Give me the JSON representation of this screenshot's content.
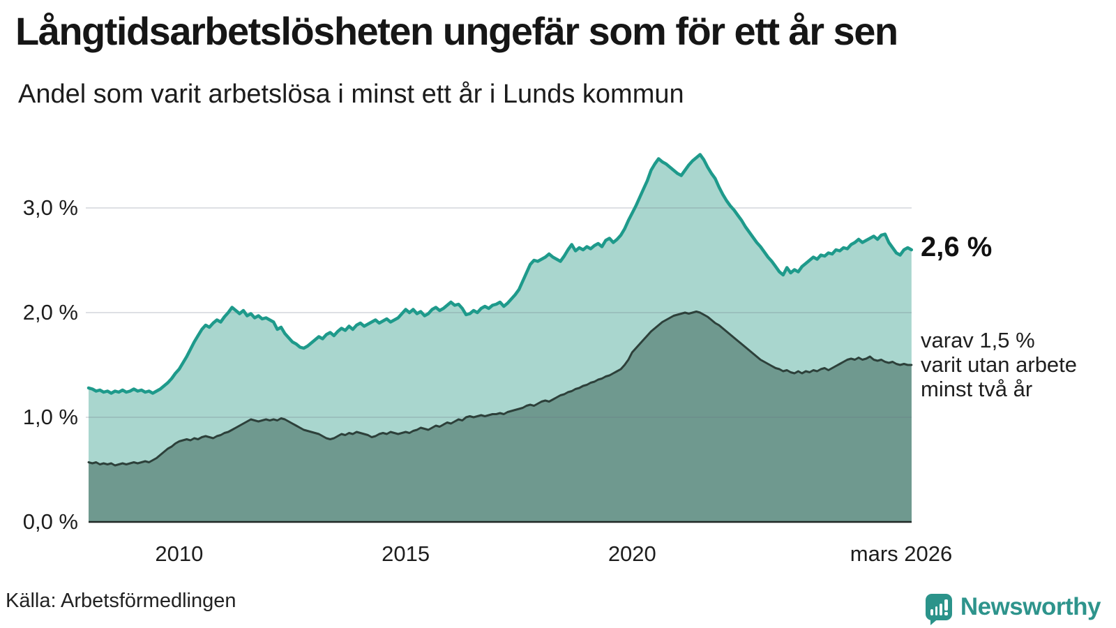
{
  "header": {
    "title": "Långtidsarbetslösheten ungefär som för ett år sen",
    "subtitle": "Andel som varit arbetslösa i minst ett år i Lunds kommun"
  },
  "annotations": {
    "end_value_total": "2,6 %",
    "end_note_lines": [
      "varav 1,5 %",
      "varit utan arbete",
      "minst två år"
    ]
  },
  "footer": {
    "source": "Källa: Arbetsförmedlingen",
    "brand": "Newsworthy"
  },
  "colors": {
    "series1_line": "#1e9a8b",
    "series1_fill": "#a9d6ce",
    "series2_line": "#2d403a",
    "series2_fill": "#6f998f",
    "axis_line": "#202825",
    "gridline": "rgba(105,115,130,0.22)",
    "brand_teal": "#2b938a"
  },
  "chart_data": {
    "type": "area",
    "title": "Långtidsarbetslösheten ungefär som för ett år sen",
    "subtitle": "Andel som varit arbetslösa i minst ett år i Lunds kommun",
    "source": "Källa: Arbetsförmedlingen",
    "unit": "%",
    "grid": true,
    "xlim": [
      2008.0,
      2026.17
    ],
    "ylim": [
      0,
      3.6
    ],
    "start_year": 2008,
    "points_per_year": 12,
    "x_ticks": [
      {
        "year": 2010,
        "label": "2010"
      },
      {
        "year": 2015,
        "label": "2015"
      },
      {
        "year": 2020,
        "label": "2020"
      },
      {
        "year": 2026.17,
        "label": "mars 2026"
      }
    ],
    "y_ticks": [
      {
        "value": 0,
        "label": "0,0 %"
      },
      {
        "value": 1,
        "label": "1,0 %"
      },
      {
        "value": 2,
        "label": "2,0 %"
      },
      {
        "value": 3,
        "label": "3,0 %"
      }
    ],
    "series": [
      {
        "id": "minst-ett-ar",
        "name": "Andel arbetslösa minst ett år",
        "end_label": "2,6 %",
        "color": "#1e9a8b",
        "fill": "#a9d6ce",
        "values": [
          1.28,
          1.27,
          1.25,
          1.26,
          1.24,
          1.25,
          1.23,
          1.25,
          1.24,
          1.26,
          1.24,
          1.25,
          1.27,
          1.25,
          1.26,
          1.24,
          1.25,
          1.23,
          1.25,
          1.27,
          1.3,
          1.33,
          1.37,
          1.42,
          1.46,
          1.52,
          1.58,
          1.65,
          1.72,
          1.78,
          1.84,
          1.88,
          1.86,
          1.9,
          1.93,
          1.91,
          1.96,
          2.0,
          2.05,
          2.02,
          1.99,
          2.02,
          1.97,
          1.99,
          1.95,
          1.97,
          1.94,
          1.95,
          1.93,
          1.91,
          1.84,
          1.86,
          1.8,
          1.76,
          1.72,
          1.7,
          1.67,
          1.66,
          1.68,
          1.71,
          1.74,
          1.77,
          1.75,
          1.79,
          1.81,
          1.78,
          1.82,
          1.85,
          1.83,
          1.87,
          1.84,
          1.88,
          1.9,
          1.87,
          1.89,
          1.91,
          1.93,
          1.9,
          1.92,
          1.94,
          1.91,
          1.93,
          1.95,
          1.99,
          2.03,
          2.0,
          2.03,
          1.99,
          2.01,
          1.97,
          1.99,
          2.03,
          2.05,
          2.02,
          2.04,
          2.07,
          2.1,
          2.07,
          2.08,
          2.04,
          1.98,
          1.99,
          2.02,
          2.0,
          2.04,
          2.06,
          2.04,
          2.07,
          2.08,
          2.1,
          2.06,
          2.09,
          2.13,
          2.17,
          2.22,
          2.3,
          2.38,
          2.46,
          2.5,
          2.49,
          2.51,
          2.53,
          2.56,
          2.53,
          2.51,
          2.49,
          2.54,
          2.6,
          2.65,
          2.59,
          2.62,
          2.6,
          2.63,
          2.61,
          2.64,
          2.66,
          2.63,
          2.69,
          2.71,
          2.67,
          2.7,
          2.74,
          2.8,
          2.88,
          2.95,
          3.02,
          3.1,
          3.18,
          3.26,
          3.36,
          3.42,
          3.47,
          3.44,
          3.42,
          3.39,
          3.36,
          3.33,
          3.31,
          3.36,
          3.41,
          3.45,
          3.48,
          3.51,
          3.46,
          3.39,
          3.33,
          3.28,
          3.2,
          3.13,
          3.07,
          3.02,
          2.98,
          2.93,
          2.88,
          2.82,
          2.77,
          2.72,
          2.67,
          2.63,
          2.58,
          2.53,
          2.49,
          2.44,
          2.39,
          2.36,
          2.43,
          2.38,
          2.41,
          2.39,
          2.44,
          2.47,
          2.5,
          2.53,
          2.51,
          2.55,
          2.54,
          2.57,
          2.56,
          2.6,
          2.59,
          2.62,
          2.61,
          2.65,
          2.67,
          2.7,
          2.67,
          2.69,
          2.71,
          2.73,
          2.7,
          2.74,
          2.75,
          2.67,
          2.62,
          2.57,
          2.55,
          2.6,
          2.62,
          2.6
        ]
      },
      {
        "id": "minst-tva-ar",
        "name": "varav arbetslösa minst två år",
        "end_label": "1,5 %",
        "color": "#2d403a",
        "fill": "#6f998f",
        "values": [
          0.57,
          0.56,
          0.57,
          0.55,
          0.56,
          0.55,
          0.56,
          0.54,
          0.55,
          0.56,
          0.55,
          0.56,
          0.57,
          0.56,
          0.57,
          0.58,
          0.57,
          0.59,
          0.61,
          0.64,
          0.67,
          0.7,
          0.72,
          0.75,
          0.77,
          0.78,
          0.79,
          0.78,
          0.8,
          0.79,
          0.81,
          0.82,
          0.81,
          0.8,
          0.82,
          0.83,
          0.85,
          0.86,
          0.88,
          0.9,
          0.92,
          0.94,
          0.96,
          0.98,
          0.97,
          0.96,
          0.97,
          0.98,
          0.97,
          0.98,
          0.97,
          0.99,
          0.98,
          0.96,
          0.94,
          0.92,
          0.9,
          0.88,
          0.87,
          0.86,
          0.85,
          0.84,
          0.82,
          0.8,
          0.79,
          0.8,
          0.82,
          0.84,
          0.83,
          0.85,
          0.84,
          0.86,
          0.85,
          0.84,
          0.83,
          0.81,
          0.82,
          0.84,
          0.85,
          0.84,
          0.86,
          0.85,
          0.84,
          0.85,
          0.86,
          0.85,
          0.87,
          0.88,
          0.9,
          0.89,
          0.88,
          0.9,
          0.92,
          0.91,
          0.93,
          0.95,
          0.94,
          0.96,
          0.98,
          0.97,
          1.0,
          1.01,
          1.0,
          1.01,
          1.02,
          1.01,
          1.02,
          1.03,
          1.03,
          1.04,
          1.03,
          1.05,
          1.06,
          1.07,
          1.08,
          1.09,
          1.11,
          1.12,
          1.11,
          1.13,
          1.15,
          1.16,
          1.15,
          1.17,
          1.19,
          1.21,
          1.22,
          1.24,
          1.25,
          1.27,
          1.28,
          1.3,
          1.31,
          1.33,
          1.34,
          1.36,
          1.37,
          1.39,
          1.4,
          1.42,
          1.44,
          1.46,
          1.5,
          1.55,
          1.62,
          1.66,
          1.7,
          1.74,
          1.78,
          1.82,
          1.85,
          1.88,
          1.91,
          1.93,
          1.95,
          1.97,
          1.98,
          1.99,
          2.0,
          1.99,
          2.0,
          2.01,
          2.0,
          1.98,
          1.96,
          1.93,
          1.9,
          1.88,
          1.85,
          1.82,
          1.79,
          1.76,
          1.73,
          1.7,
          1.67,
          1.64,
          1.61,
          1.58,
          1.55,
          1.53,
          1.51,
          1.49,
          1.47,
          1.46,
          1.44,
          1.45,
          1.43,
          1.42,
          1.44,
          1.42,
          1.44,
          1.43,
          1.45,
          1.44,
          1.46,
          1.47,
          1.45,
          1.47,
          1.49,
          1.51,
          1.53,
          1.55,
          1.56,
          1.55,
          1.57,
          1.55,
          1.56,
          1.58,
          1.55,
          1.54,
          1.55,
          1.53,
          1.52,
          1.53,
          1.51,
          1.5,
          1.51,
          1.5,
          1.5
        ]
      }
    ]
  }
}
